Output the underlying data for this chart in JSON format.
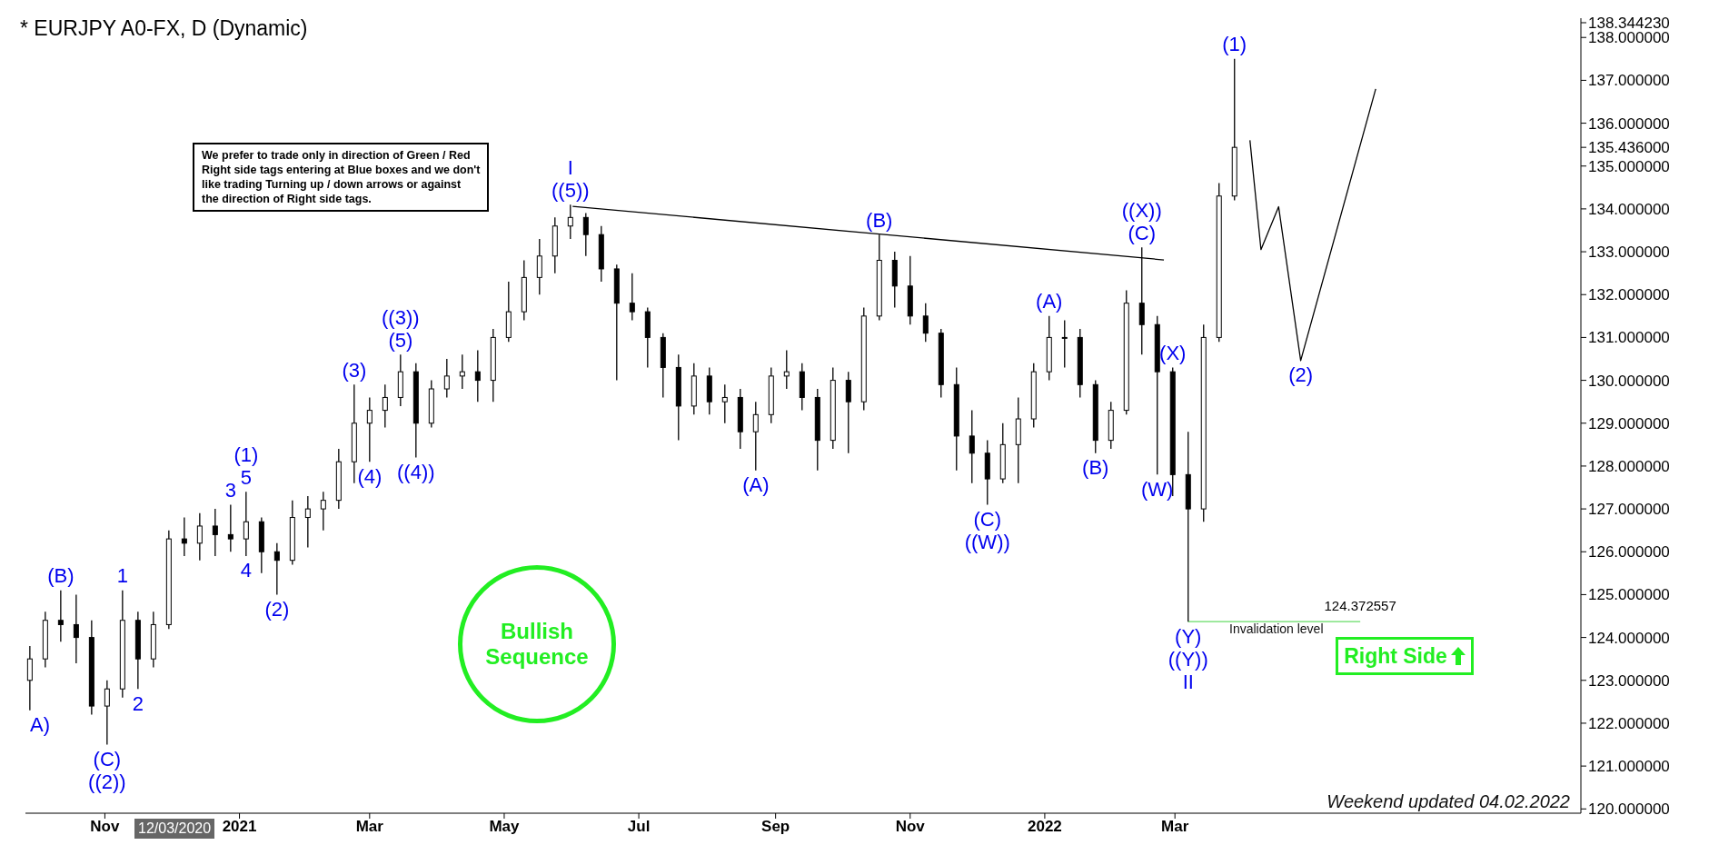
{
  "chart_data": {
    "type": "candlestick",
    "title": "* EURJPY A0-FX, D (Dynamic)",
    "x": [
      "2020-09-28",
      "2020-10-05",
      "2020-10-12",
      "2020-10-19",
      "2020-10-26",
      "2020-11-02",
      "2020-11-09",
      "2020-11-16",
      "2020-11-23",
      "2020-11-30",
      "2020-12-07",
      "2020-12-14",
      "2020-12-21",
      "2020-12-28",
      "2021-01-04",
      "2021-01-11",
      "2021-01-18",
      "2021-01-25",
      "2021-02-01",
      "2021-02-08",
      "2021-02-15",
      "2021-02-22",
      "2021-03-01",
      "2021-03-08",
      "2021-03-15",
      "2021-03-22",
      "2021-03-29",
      "2021-04-05",
      "2021-04-12",
      "2021-04-19",
      "2021-04-26",
      "2021-05-03",
      "2021-05-10",
      "2021-05-17",
      "2021-05-24",
      "2021-05-31",
      "2021-06-07",
      "2021-06-14",
      "2021-06-21",
      "2021-06-28",
      "2021-07-05",
      "2021-07-12",
      "2021-07-19",
      "2021-07-26",
      "2021-08-02",
      "2021-08-09",
      "2021-08-16",
      "2021-08-23",
      "2021-08-30",
      "2021-09-06",
      "2021-09-13",
      "2021-09-20",
      "2021-09-27",
      "2021-10-04",
      "2021-10-11",
      "2021-10-18",
      "2021-10-25",
      "2021-11-01",
      "2021-11-08",
      "2021-11-15",
      "2021-11-22",
      "2021-11-29",
      "2021-12-06",
      "2021-12-13",
      "2021-12-20",
      "2021-12-27",
      "2022-01-03",
      "2022-01-10",
      "2022-01-17",
      "2022-01-24",
      "2022-01-31",
      "2022-02-07",
      "2022-02-14",
      "2022-02-21",
      "2022-02-28",
      "2022-03-07",
      "2022-03-14",
      "2022-03-21",
      "2022-03-28"
    ],
    "ohlc": [
      [
        123.0,
        123.8,
        122.3,
        123.5
      ],
      [
        123.5,
        124.6,
        123.3,
        124.4
      ],
      [
        124.4,
        125.1,
        123.9,
        124.3
      ],
      [
        124.3,
        125.0,
        123.4,
        124.0
      ],
      [
        124.0,
        124.4,
        122.2,
        122.4
      ],
      [
        122.4,
        123.0,
        121.5,
        122.8
      ],
      [
        122.8,
        125.1,
        122.6,
        124.4
      ],
      [
        124.4,
        124.6,
        122.8,
        123.5
      ],
      [
        123.5,
        124.6,
        123.3,
        124.3
      ],
      [
        124.3,
        126.5,
        124.2,
        126.3
      ],
      [
        126.3,
        126.8,
        125.9,
        126.2
      ],
      [
        126.2,
        126.9,
        125.8,
        126.6
      ],
      [
        126.6,
        127.0,
        125.9,
        126.4
      ],
      [
        126.4,
        127.1,
        126.0,
        126.3
      ],
      [
        126.3,
        127.4,
        125.9,
        126.7
      ],
      [
        126.7,
        126.8,
        125.5,
        126.0
      ],
      [
        126.0,
        126.2,
        125.0,
        125.8
      ],
      [
        125.8,
        127.2,
        125.7,
        126.8
      ],
      [
        126.8,
        127.3,
        126.1,
        127.0
      ],
      [
        127.0,
        127.4,
        126.5,
        127.2
      ],
      [
        127.2,
        128.4,
        127.0,
        128.1
      ],
      [
        128.1,
        129.9,
        127.6,
        129.0
      ],
      [
        129.0,
        129.6,
        128.1,
        129.3
      ],
      [
        129.3,
        129.9,
        128.9,
        129.6
      ],
      [
        129.6,
        130.6,
        129.4,
        130.2
      ],
      [
        130.2,
        130.4,
        128.2,
        129.0
      ],
      [
        129.0,
        130.0,
        128.9,
        129.8
      ],
      [
        129.8,
        130.5,
        129.6,
        130.1
      ],
      [
        130.1,
        130.6,
        129.8,
        130.2
      ],
      [
        130.2,
        130.7,
        129.5,
        130.0
      ],
      [
        130.0,
        131.2,
        129.5,
        131.0
      ],
      [
        131.0,
        132.3,
        130.9,
        131.6
      ],
      [
        131.6,
        132.8,
        131.4,
        132.4
      ],
      [
        132.4,
        133.3,
        132.0,
        132.9
      ],
      [
        132.9,
        133.8,
        132.5,
        133.6
      ],
      [
        133.6,
        134.1,
        133.3,
        133.8
      ],
      [
        133.8,
        133.9,
        132.9,
        133.4
      ],
      [
        133.4,
        133.6,
        132.3,
        132.6
      ],
      [
        132.6,
        132.7,
        130.0,
        131.8
      ],
      [
        131.8,
        132.5,
        131.4,
        131.6
      ],
      [
        131.6,
        131.7,
        130.3,
        131.0
      ],
      [
        131.0,
        131.1,
        129.6,
        130.3
      ],
      [
        130.3,
        130.6,
        128.6,
        129.4
      ],
      [
        129.4,
        130.4,
        129.2,
        130.1
      ],
      [
        130.1,
        130.3,
        129.2,
        129.5
      ],
      [
        129.5,
        129.9,
        129.0,
        129.6
      ],
      [
        129.6,
        129.8,
        128.4,
        128.8
      ],
      [
        128.8,
        129.5,
        127.9,
        129.2
      ],
      [
        129.2,
        130.3,
        129.0,
        130.1
      ],
      [
        130.1,
        130.7,
        129.8,
        130.2
      ],
      [
        130.2,
        130.4,
        129.3,
        129.6
      ],
      [
        129.6,
        129.8,
        127.9,
        128.6
      ],
      [
        128.6,
        130.3,
        128.4,
        130.0
      ],
      [
        130.0,
        130.2,
        128.3,
        129.5
      ],
      [
        129.5,
        131.7,
        129.3,
        131.5
      ],
      [
        131.5,
        133.4,
        131.4,
        132.8
      ],
      [
        132.8,
        133.0,
        131.7,
        132.2
      ],
      [
        132.2,
        132.9,
        131.3,
        131.5
      ],
      [
        131.5,
        131.8,
        130.9,
        131.1
      ],
      [
        131.1,
        131.2,
        129.6,
        129.9
      ],
      [
        129.9,
        130.3,
        127.9,
        128.7
      ],
      [
        128.7,
        129.3,
        127.6,
        128.3
      ],
      [
        128.3,
        128.6,
        127.1,
        127.7
      ],
      [
        127.7,
        129.0,
        127.6,
        128.5
      ],
      [
        128.5,
        129.6,
        127.6,
        129.1
      ],
      [
        129.1,
        130.4,
        128.9,
        130.2
      ],
      [
        130.2,
        131.5,
        130.0,
        131.0
      ],
      [
        131.0,
        131.4,
        130.3,
        131.0
      ],
      [
        131.0,
        131.2,
        129.6,
        129.9
      ],
      [
        129.9,
        130.0,
        128.3,
        128.6
      ],
      [
        128.6,
        129.5,
        128.4,
        129.3
      ],
      [
        129.3,
        132.1,
        129.2,
        131.8
      ],
      [
        131.8,
        133.1,
        130.6,
        131.3
      ],
      [
        131.3,
        131.5,
        127.8,
        130.2
      ],
      [
        130.2,
        130.3,
        127.3,
        127.8
      ],
      [
        127.8,
        128.8,
        124.37,
        127.0
      ],
      [
        127.0,
        131.3,
        126.7,
        131.0
      ],
      [
        131.0,
        134.6,
        130.9,
        134.3
      ],
      [
        134.3,
        137.5,
        134.2,
        135.436
      ]
    ],
    "series": [
      {
        "type": "line",
        "color": "#000000",
        "marker": "none",
        "line_style": "solid",
        "x": [
          "2021-06-01",
          "2022-02-24"
        ],
        "values": [
          134.06,
          132.81
        ]
      },
      {
        "type": "line",
        "color": "#000000",
        "marker": "none",
        "line_style": "solid",
        "x": [
          "2022-04-04",
          "2022-04-09",
          "2022-04-17",
          "2022-04-27",
          "2022-05-31"
        ],
        "values": [
          135.6,
          133.05,
          134.05,
          130.46,
          136.8
        ]
      },
      {
        "type": "line",
        "color": "#66dd66",
        "marker": "none",
        "line_style": "solid",
        "x": [
          "2022-03-07",
          "2022-05-24"
        ],
        "values": [
          124.372557,
          124.372557
        ],
        "value_labels": [
          null,
          "124.372557"
        ]
      }
    ],
    "xlim": [
      "2020-09-26",
      "2022-09-01"
    ],
    "xticks": [
      {
        "value": "2020-11-01",
        "label": "Nov"
      },
      {
        "value": "2021-01-01",
        "label": "2021"
      },
      {
        "value": "2021-03-01",
        "label": "Mar"
      },
      {
        "value": "2021-05-01",
        "label": "May"
      },
      {
        "value": "2021-07-01",
        "label": "Jul"
      },
      {
        "value": "2021-09-01",
        "label": "Sep"
      },
      {
        "value": "2021-11-01",
        "label": "Nov"
      },
      {
        "value": "2022-01-01",
        "label": "2022"
      },
      {
        "value": "2022-03-01",
        "label": "Mar"
      }
    ],
    "ylim": [
      119.9,
      138.45
    ],
    "yticks": [
      {
        "value": 120,
        "label": "120.000000"
      },
      {
        "value": 121,
        "label": "121.000000"
      },
      {
        "value": 122,
        "label": "122.000000"
      },
      {
        "value": 123,
        "label": "123.000000"
      },
      {
        "value": 124,
        "label": "124.000000"
      },
      {
        "value": 125,
        "label": "125.000000"
      },
      {
        "value": 126,
        "label": "126.000000"
      },
      {
        "value": 127,
        "label": "127.000000"
      },
      {
        "value": 128,
        "label": "128.000000"
      },
      {
        "value": 129,
        "label": "129.000000"
      },
      {
        "value": 130,
        "label": "130.000000"
      },
      {
        "value": 131,
        "label": "131.000000"
      },
      {
        "value": 132,
        "label": "132.000000"
      },
      {
        "value": 133,
        "label": "133.000000"
      },
      {
        "value": 134,
        "label": "134.000000"
      },
      {
        "value": 135,
        "label": "135.000000"
      },
      {
        "value": 135.436,
        "label": "135.436000"
      },
      {
        "value": 136,
        "label": "136.000000"
      },
      {
        "value": 137,
        "label": "137.000000"
      },
      {
        "value": 138,
        "label": "138.000000"
      },
      {
        "value": 138.34423,
        "label": "138.344230"
      }
    ],
    "grid": false,
    "legend": false,
    "annotations": [
      "We prefer to trade only in direction of Green / Red\nRight side tags entering at Blue boxes and we don't\nlike trading Turning up / down arrows or against\nthe direction of Right side tags.",
      "Bullish\nSequence",
      "Right Side",
      "12/03/2020",
      "Weekend updated 04.02.2022",
      "Invalidation level",
      {
        "text": "A)",
        "x": "2020-09-28",
        "y": 122.3
      },
      {
        "text": "(B)",
        "x": "2020-10-12",
        "y": 125.1
      },
      {
        "text": "(C)",
        "x": "2020-11-02",
        "y": 121.5
      },
      {
        "text": "((2))",
        "x": "2020-11-02",
        "y": 121.5
      },
      {
        "text": "1",
        "x": "2020-11-09",
        "y": 125.1
      },
      {
        "text": "2",
        "x": "2020-11-16",
        "y": 122.8
      },
      {
        "text": "3",
        "x": "2020-12-28",
        "y": 127.1
      },
      {
        "text": "4",
        "x": "2021-01-04",
        "y": 125.9
      },
      {
        "text": "5",
        "x": "2021-01-04",
        "y": 127.4
      },
      {
        "text": "(1)",
        "x": "2021-01-04",
        "y": 127.4
      },
      {
        "text": "(2)",
        "x": "2021-01-18",
        "y": 125.0
      },
      {
        "text": "(3)",
        "x": "2021-02-22",
        "y": 129.9
      },
      {
        "text": "(4)",
        "x": "2021-03-01",
        "y": 128.1
      },
      {
        "text": "(5)",
        "x": "2021-03-15",
        "y": 130.6
      },
      {
        "text": "((3))",
        "x": "2021-03-15",
        "y": 130.6
      },
      {
        "text": "((4))",
        "x": "2021-03-22",
        "y": 128.2
      },
      {
        "text": "((5))",
        "x": "2021-05-31",
        "y": 134.1
      },
      {
        "text": "I",
        "x": "2021-05-31",
        "y": 134.1
      },
      {
        "text": "(A)",
        "x": "2021-08-23",
        "y": 127.9
      },
      {
        "text": "(B)",
        "x": "2021-10-18",
        "y": 133.4
      },
      {
        "text": "(C)",
        "x": "2021-12-06",
        "y": 127.1
      },
      {
        "text": "((W))",
        "x": "2021-12-06",
        "y": 127.1
      },
      {
        "text": "(A)",
        "x": "2022-01-03",
        "y": 131.5
      },
      {
        "text": "(B)",
        "x": "2022-01-24",
        "y": 128.3
      },
      {
        "text": "(C)",
        "x": "2022-02-14",
        "y": 133.1
      },
      {
        "text": "((X))",
        "x": "2022-02-14",
        "y": 133.1
      },
      {
        "text": "(W)",
        "x": "2022-02-21",
        "y": 127.8
      },
      {
        "text": "(X)",
        "x": "2022-02-28",
        "y": 130.3
      },
      {
        "text": "(Y)",
        "x": "2022-03-07",
        "y": 124.37
      },
      {
        "text": "((Y))",
        "x": "2022-03-07",
        "y": 124.37
      },
      {
        "text": "II",
        "x": "2022-03-07",
        "y": 124.37
      },
      {
        "text": "(1)",
        "x": "2022-03-28",
        "y": 137.5
      },
      {
        "text": "(2)",
        "x": "2022-04-27",
        "y": 130.46
      }
    ]
  }
}
